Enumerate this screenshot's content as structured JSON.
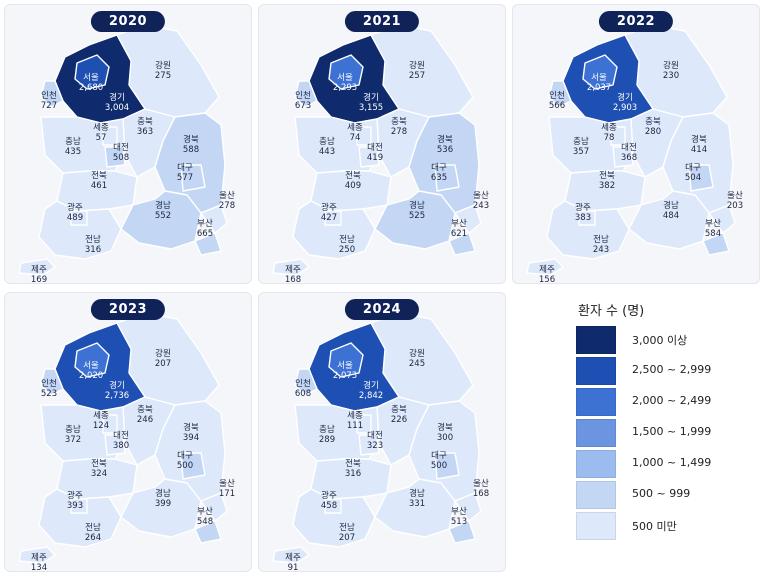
{
  "legend": {
    "title": "환자 수 (명)",
    "items": [
      {
        "label": "3,000 이상",
        "color": "#0f2b6e"
      },
      {
        "label": "2,500 ~ 2,999",
        "color": "#1e4fb3"
      },
      {
        "label": "2,000 ~ 2,499",
        "color": "#3d72d4"
      },
      {
        "label": "1,500 ~ 1,999",
        "color": "#6b95e0"
      },
      {
        "label": "1,000 ~ 1,499",
        "color": "#9bbcee"
      },
      {
        "label": "500 ~ 999",
        "color": "#c3d7f5"
      },
      {
        "label": "500 미만",
        "color": "#dde8fa"
      }
    ]
  },
  "region_names": [
    "서울",
    "경기",
    "인천",
    "강원",
    "충북",
    "충남",
    "세종",
    "대전",
    "경북",
    "대구",
    "전북",
    "광주",
    "전남",
    "경남",
    "울산",
    "부산",
    "제주"
  ],
  "maps": [
    {
      "year": "2020",
      "values": {
        "서울": "2,680",
        "경기": "3,004",
        "인천": "727",
        "강원": "275",
        "충북": "363",
        "충남": "435",
        "세종": "57",
        "대전": "508",
        "경북": "588",
        "대구": "577",
        "전북": "461",
        "광주": "489",
        "전남": "316",
        "경남": "552",
        "울산": "278",
        "부산": "665",
        "제주": "169"
      }
    },
    {
      "year": "2021",
      "values": {
        "서울": "2,293",
        "경기": "3,155",
        "인천": "673",
        "강원": "257",
        "충북": "278",
        "충남": "443",
        "세종": "74",
        "대전": "419",
        "경북": "536",
        "대구": "635",
        "전북": "409",
        "광주": "427",
        "전남": "250",
        "경남": "525",
        "울산": "243",
        "부산": "621",
        "제주": "168"
      }
    },
    {
      "year": "2022",
      "values": {
        "서울": "2,037",
        "경기": "2,903",
        "인천": "566",
        "강원": "230",
        "충북": "280",
        "충남": "357",
        "세종": "78",
        "대전": "368",
        "경북": "414",
        "대구": "504",
        "전북": "382",
        "광주": "383",
        "전남": "243",
        "경남": "484",
        "울산": "203",
        "부산": "584",
        "제주": "156"
      }
    },
    {
      "year": "2023",
      "values": {
        "서울": "2,020",
        "경기": "2,736",
        "인천": "523",
        "강원": "207",
        "충북": "246",
        "충남": "372",
        "세종": "124",
        "대전": "380",
        "경북": "394",
        "대구": "500",
        "전북": "324",
        "광주": "393",
        "전남": "264",
        "경남": "399",
        "울산": "171",
        "부산": "548",
        "제주": "134"
      }
    },
    {
      "year": "2024",
      "values": {
        "서울": "2,073",
        "경기": "2,842",
        "인천": "608",
        "강원": "245",
        "충북": "226",
        "충남": "289",
        "세종": "111",
        "대전": "323",
        "경북": "300",
        "대구": "500",
        "전북": "316",
        "광주": "458",
        "전남": "207",
        "경남": "331",
        "울산": "168",
        "부산": "513",
        "제주": "91"
      }
    }
  ]
}
